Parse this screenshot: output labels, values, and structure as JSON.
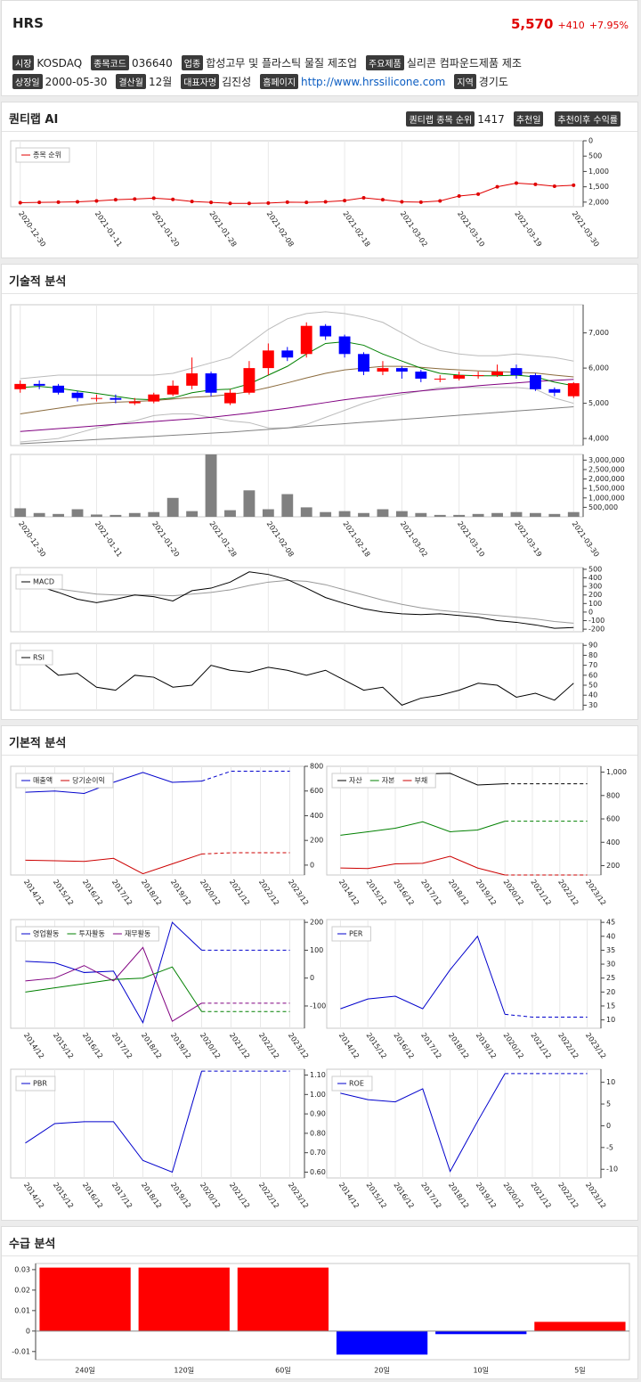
{
  "header": {
    "title": "HRS",
    "price": "5,570",
    "change": "+410",
    "change_pct": "+7.95%"
  },
  "info": [
    [
      {
        "label": "시장",
        "value": "KOSDAQ"
      },
      {
        "label": "종목코드",
        "value": "036640"
      },
      {
        "label": "업종",
        "value": "합성고무 및 플라스틱 물질 제조업"
      },
      {
        "label": "주요제품",
        "value": "실리콘 컴파운드제품 제조"
      }
    ],
    [
      {
        "label": "상장일",
        "value": "2000-05-30"
      },
      {
        "label": "결산월",
        "value": "12월"
      },
      {
        "label": "대표자명",
        "value": "김진성"
      },
      {
        "label": "홈페이지",
        "value": "http://www.hrssilicone.com"
      },
      {
        "label": "지역",
        "value": "경기도"
      }
    ]
  ],
  "sections": {
    "ai": "퀀티랩 AI",
    "technical": "기술적 분석",
    "fundamental": "기본적 분석",
    "supply": "수급 분석"
  },
  "ai_badges": [
    {
      "label": "퀀티랩 종목 순위",
      "value": "1417"
    },
    {
      "label": "추천일"
    },
    {
      "label": "추천이후 수익률"
    }
  ],
  "chart_data": [
    {
      "type": "line",
      "reverse": true,
      "ylim": [
        0,
        2150
      ],
      "yticks": [
        0,
        500,
        {
          "value": 1000,
          "label": "1,000"
        },
        {
          "value": 1500,
          "label": "1,500"
        },
        {
          "value": 2000,
          "label": "2,000"
        }
      ],
      "categories": [
        "2020-12-30",
        null,
        null,
        null,
        "2021-01-11",
        null,
        null,
        "2021-01-20",
        null,
        null,
        "2021-01-28",
        null,
        null,
        "2021-02-08",
        null,
        null,
        null,
        "2021-02-18",
        null,
        null,
        "2021-03-02",
        null,
        null,
        "2021-03-10",
        null,
        null,
        "2021-03-19",
        null,
        null,
        "2021-03-30"
      ],
      "markers": true,
      "series": [
        {
          "name": "종목 순위",
          "color": "#e00000",
          "values": [
            2020,
            2010,
            2000,
            1990,
            1960,
            1920,
            1900,
            1870,
            1910,
            1980,
            2010,
            2040,
            2040,
            2030,
            2000,
            2010,
            1990,
            1950,
            1860,
            1920,
            1990,
            2000,
            1960,
            1800,
            1740,
            1500,
            1380,
            1420,
            1480,
            1450
          ]
        }
      ]
    },
    {
      "type": "candlestick",
      "ylim": [
        3800,
        7800
      ],
      "yticks": [
        {
          "value": 4000,
          "label": "4,000"
        },
        {
          "value": 5000,
          "label": "5,000"
        },
        {
          "value": 6000,
          "label": "6,000"
        },
        {
          "value": 7000,
          "label": "7,000"
        }
      ],
      "up_color": "#ff0000",
      "down_color": "#0000ff",
      "open": [
        5400,
        5550,
        5500,
        5300,
        5150,
        5150,
        5000,
        5050,
        5250,
        5500,
        5850,
        5000,
        5300,
        6000,
        6500,
        6400,
        7200,
        6900,
        6400,
        5900,
        6000,
        5900,
        5700,
        5700,
        5800,
        5800,
        6000,
        5800,
        5400,
        5200
      ],
      "high": [
        5650,
        5650,
        5550,
        5350,
        5250,
        5250,
        5150,
        5300,
        5650,
        6300,
        5900,
        5400,
        6200,
        6700,
        6600,
        7300,
        7250,
        6950,
        6450,
        6200,
        6050,
        5950,
        5800,
        5900,
        5900,
        6100,
        6100,
        5850,
        5450,
        5600
      ],
      "low": [
        5300,
        5400,
        5250,
        5050,
        5050,
        5000,
        4950,
        5000,
        5200,
        5400,
        5200,
        4950,
        5250,
        5800,
        6200,
        6300,
        6800,
        6300,
        5800,
        5800,
        5700,
        5600,
        5600,
        5650,
        5700,
        5750,
        5700,
        5350,
        5200,
        5150
      ],
      "close": [
        5550,
        5500,
        5300,
        5150,
        5150,
        5100,
        5050,
        5250,
        5500,
        5850,
        5300,
        5300,
        6000,
        6500,
        6300,
        7200,
        6900,
        6400,
        5900,
        6000,
        5900,
        5700,
        5700,
        5800,
        5800,
        5900,
        5800,
        5400,
        5300,
        5570
      ],
      "series": [
        {
          "color": "#bbbbbb",
          "values": [
            5700,
            5750,
            5800,
            5800,
            5800,
            5800,
            5800,
            5800,
            5850,
            6000,
            6150,
            6300,
            6700,
            7100,
            7400,
            7550,
            7600,
            7550,
            7450,
            7300,
            7000,
            6700,
            6500,
            6400,
            6350,
            6350,
            6400,
            6350,
            6300,
            6200
          ]
        },
        {
          "color": "#bbbbbb",
          "values": [
            3900,
            3950,
            4000,
            4150,
            4300,
            4400,
            4500,
            4650,
            4700,
            4700,
            4600,
            4500,
            4450,
            4300,
            4300,
            4400,
            4600,
            4800,
            5000,
            5150,
            5250,
            5350,
            5450,
            5450,
            5450,
            5450,
            5450,
            5400,
            5150,
            5000
          ]
        },
        {
          "color": "#808080",
          "values": [
            3850,
            3880,
            3910,
            3940,
            3970,
            4000,
            4030,
            4060,
            4090,
            4120,
            4150,
            4180,
            4220,
            4260,
            4300,
            4340,
            4380,
            4420,
            4460,
            4500,
            4540,
            4580,
            4620,
            4660,
            4700,
            4740,
            4780,
            4820,
            4860,
            4900
          ]
        },
        {
          "color": "#800080",
          "values": [
            4200,
            4240,
            4280,
            4320,
            4360,
            4400,
            4440,
            4480,
            4520,
            4560,
            4600,
            4660,
            4720,
            4790,
            4860,
            4940,
            5020,
            5100,
            5170,
            5230,
            5300,
            5350,
            5400,
            5450,
            5500,
            5540,
            5580,
            5620,
            5650,
            5680
          ]
        },
        {
          "color": "#8b6b3d",
          "values": [
            4700,
            4780,
            4860,
            4940,
            5000,
            5030,
            5050,
            5080,
            5120,
            5170,
            5200,
            5250,
            5330,
            5450,
            5580,
            5720,
            5850,
            5950,
            6000,
            6050,
            6050,
            6020,
            5980,
            5950,
            5920,
            5900,
            5880,
            5860,
            5800,
            5750
          ]
        },
        {
          "color": "#008000",
          "values": [
            5450,
            5480,
            5430,
            5350,
            5280,
            5200,
            5120,
            5100,
            5150,
            5300,
            5380,
            5400,
            5550,
            5800,
            6050,
            6400,
            6700,
            6750,
            6650,
            6400,
            6200,
            6000,
            5850,
            5800,
            5780,
            5780,
            5800,
            5750,
            5600,
            5500
          ]
        }
      ]
    },
    {
      "type": "bar",
      "color": "#808080",
      "ylim": [
        0,
        3300000
      ],
      "yticks": [
        {
          "value": 500000,
          "label": "500,000"
        },
        {
          "value": 1000000,
          "label": "1,000,000"
        },
        {
          "value": 1500000,
          "label": "1,500,000"
        },
        {
          "value": 2000000,
          "label": "2,000,000"
        },
        {
          "value": 2500000,
          "label": "2,500,000"
        },
        {
          "value": 3000000,
          "label": "3,000,000"
        }
      ],
      "categories": [
        "2020-12-30",
        null,
        null,
        null,
        "2021-01-11",
        null,
        null,
        "2021-01-20",
        null,
        null,
        "2021-01-28",
        null,
        null,
        "2021-02-08",
        null,
        null,
        null,
        "2021-02-18",
        null,
        null,
        "2021-03-02",
        null,
        null,
        "2021-03-10",
        null,
        null,
        "2021-03-19",
        null,
        null,
        "2021-03-30"
      ],
      "values": [
        450000,
        200000,
        150000,
        400000,
        120000,
        100000,
        200000,
        250000,
        1000000,
        300000,
        3300000,
        350000,
        1400000,
        400000,
        1200000,
        500000,
        250000,
        300000,
        200000,
        400000,
        300000,
        200000,
        100000,
        100000,
        150000,
        200000,
        250000,
        200000,
        150000,
        250000
      ]
    },
    {
      "type": "line",
      "ylim": [
        -230,
        520
      ],
      "yticks": [
        -200,
        -100,
        0,
        100,
        200,
        300,
        400,
        500
      ],
      "series": [
        {
          "color": "#999999",
          "values": [
            300,
            290,
            270,
            240,
            210,
            200,
            200,
            200,
            190,
            210,
            230,
            260,
            310,
            350,
            370,
            360,
            320,
            260,
            200,
            140,
            90,
            50,
            20,
            0,
            -20,
            -40,
            -60,
            -80,
            -110,
            -130
          ]
        },
        {
          "name": "MACD",
          "color": "#000000",
          "values": [
            350,
            300,
            230,
            150,
            110,
            150,
            200,
            180,
            130,
            250,
            280,
            350,
            470,
            440,
            380,
            280,
            170,
            100,
            40,
            0,
            -20,
            -30,
            -20,
            -40,
            -60,
            -100,
            -120,
            -150,
            -190,
            -180
          ]
        }
      ]
    },
    {
      "type": "line",
      "ylim": [
        25,
        92
      ],
      "yticks": [
        30,
        40,
        50,
        60,
        70,
        80,
        90
      ],
      "series": [
        {
          "name": "RSI",
          "color": "#000000",
          "values": [
            80,
            75,
            60,
            62,
            48,
            45,
            60,
            58,
            48,
            50,
            70,
            65,
            63,
            68,
            65,
            60,
            65,
            55,
            45,
            48,
            30,
            37,
            40,
            45,
            52,
            50,
            38,
            42,
            35,
            52
          ]
        }
      ]
    },
    {
      "type": "line",
      "ylim": [
        -80,
        800
      ],
      "yticks": [
        0,
        200,
        400,
        600,
        800
      ],
      "dashed_from": 6,
      "categories": [
        "2014/12",
        "2015/12",
        "2016/12",
        "2017/12",
        "2018/12",
        "2019/12",
        "2020/12",
        "2021/12",
        "2022/12",
        "2023/12"
      ],
      "series": [
        {
          "name": "매출액",
          "color": "#0000cc",
          "values": [
            590,
            600,
            580,
            670,
            750,
            670,
            680,
            760,
            760,
            760
          ]
        },
        {
          "name": "당기순이익",
          "color": "#cc0000",
          "values": [
            40,
            35,
            30,
            55,
            -70,
            10,
            90,
            100,
            100,
            100
          ]
        }
      ]
    },
    {
      "type": "line",
      "ylim": [
        120,
        1050
      ],
      "yticks": [
        200,
        400,
        600,
        800,
        {
          "value": 1000,
          "label": "1,000"
        }
      ],
      "dashed_from": 6,
      "categories": [
        "2014/12",
        "2015/12",
        "2016/12",
        "2017/12",
        "2018/12",
        "2019/12",
        "2020/12",
        "2021/12",
        "2022/12",
        "2023/12"
      ],
      "series": [
        {
          "name": "자산",
          "color": "#000000",
          "values": [
            null,
            null,
            null,
            985,
            990,
            890,
            900,
            900,
            900,
            900
          ]
        },
        {
          "name": "자본",
          "color": "#008000",
          "values": [
            460,
            490,
            520,
            575,
            490,
            505,
            580,
            580,
            580,
            580
          ]
        },
        {
          "name": "부채",
          "color": "#cc0000",
          "values": [
            180,
            175,
            215,
            220,
            280,
            180,
            120,
            120,
            120,
            120
          ]
        }
      ]
    },
    {
      "type": "line",
      "ylim": [
        -180,
        210
      ],
      "yticks": [
        -100,
        0,
        100,
        200
      ],
      "dashed_from": 6,
      "categories": [
        "2014/12",
        "2015/12",
        "2016/12",
        "2017/12",
        "2018/12",
        "2019/12",
        "2020/12",
        "2021/12",
        "2022/12",
        "2023/12"
      ],
      "series": [
        {
          "name": "영업활동",
          "color": "#0000cc",
          "values": [
            60,
            55,
            20,
            25,
            -160,
            200,
            100,
            100,
            100,
            100
          ]
        },
        {
          "name": "투자활동",
          "color": "#008000",
          "values": [
            -50,
            -35,
            -20,
            -5,
            0,
            40,
            -120,
            -120,
            -120,
            -120
          ]
        },
        {
          "name": "재무활동",
          "color": "#800080",
          "values": [
            -10,
            0,
            45,
            -10,
            110,
            -155,
            -90,
            -90,
            -90,
            -90
          ]
        }
      ]
    },
    {
      "type": "line",
      "ylim": [
        7,
        46
      ],
      "yticks": [
        10,
        15,
        20,
        25,
        30,
        35,
        40,
        45
      ],
      "dashed_from": 6,
      "categories": [
        "2014/12",
        "2015/12",
        "2016/12",
        "2017/12",
        "2018/12",
        "2019/12",
        "2020/12",
        "2021/12",
        "2022/12",
        "2023/12"
      ],
      "series": [
        {
          "name": "PER",
          "color": "#0000cc",
          "values": [
            14,
            17.5,
            18.5,
            14,
            28,
            40,
            12,
            11,
            11,
            11
          ]
        }
      ]
    },
    {
      "type": "line",
      "ylim": [
        0.57,
        1.13
      ],
      "yticks": [
        {
          "value": 0.6,
          "label": "0.60"
        },
        {
          "value": 0.7,
          "label": "0.70"
        },
        {
          "value": 0.8,
          "label": "0.80"
        },
        {
          "value": 0.9,
          "label": "0.90"
        },
        {
          "value": 1.0,
          "label": "1.00"
        },
        {
          "value": 1.1,
          "label": "1.10"
        }
      ],
      "dashed_from": 6,
      "categories": [
        "2014/12",
        "2015/12",
        "2016/12",
        "2017/12",
        "2018/12",
        "2019/12",
        "2020/12",
        "2021/12",
        "2022/12",
        "2023/12"
      ],
      "series": [
        {
          "name": "PBR",
          "color": "#0000cc",
          "values": [
            0.75,
            0.85,
            0.86,
            0.86,
            0.66,
            0.6,
            1.12,
            1.12,
            1.12,
            1.12
          ]
        }
      ]
    },
    {
      "type": "line",
      "ylim": [
        -12,
        13
      ],
      "yticks": [
        -10,
        -5,
        0,
        5,
        10
      ],
      "dashed_from": 6,
      "categories": [
        "2014/12",
        "2015/12",
        "2016/12",
        "2017/12",
        "2018/12",
        "2019/12",
        "2020/12",
        "2021/12",
        "2022/12",
        "2023/12"
      ],
      "series": [
        {
          "name": "ROE",
          "color": "#0000cc",
          "values": [
            7.5,
            6,
            5.5,
            8.5,
            -10.5,
            1,
            12,
            12,
            12,
            12
          ]
        }
      ]
    },
    {
      "type": "bar",
      "positive_color": "#ff0000",
      "negative_color": "#0000ff",
      "ylim": [
        -0.014,
        0.033
      ],
      "yticks": [
        -0.01,
        0,
        0.01,
        0.02,
        0.03
      ],
      "categories": [
        "240일",
        "120일",
        "60일",
        "20일",
        "10일",
        "5일"
      ],
      "values": [
        0.031,
        0.031,
        0.031,
        -0.0115,
        -0.0015,
        0.0045
      ]
    }
  ]
}
